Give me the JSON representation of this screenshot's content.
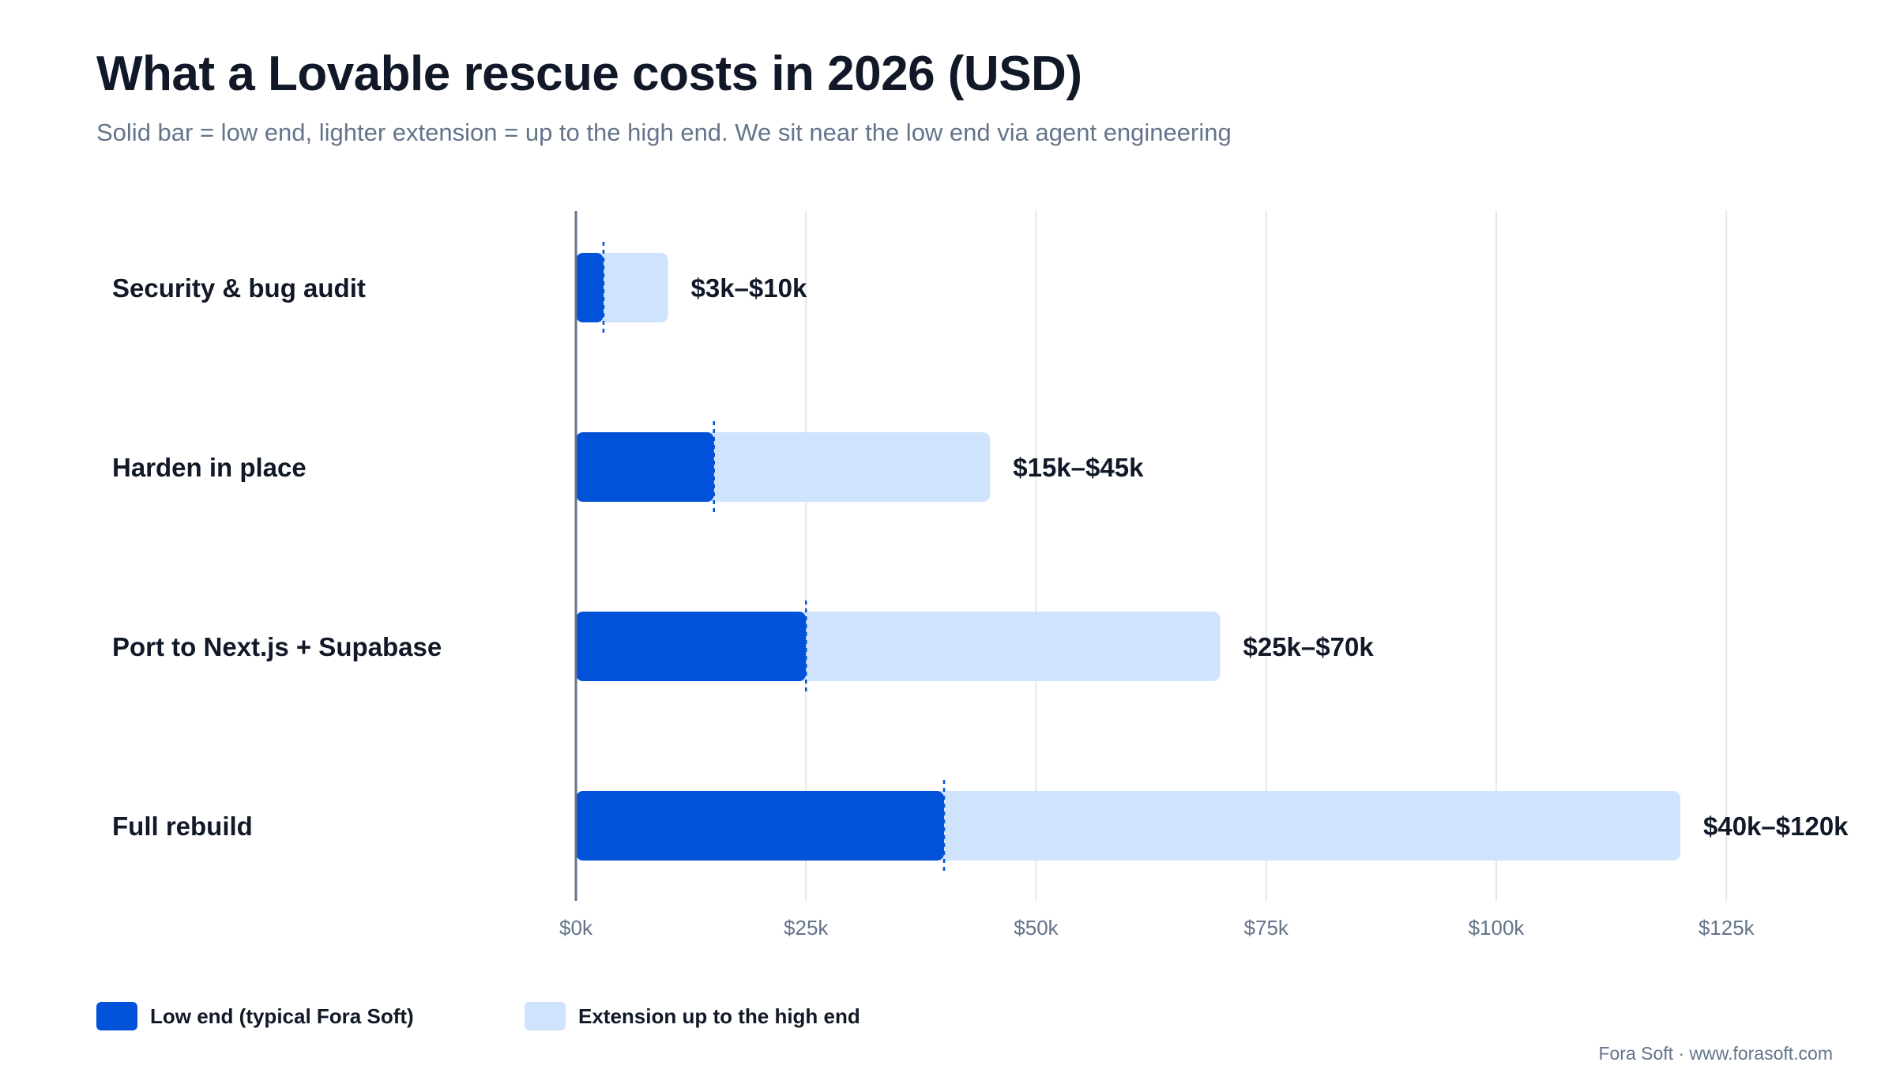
{
  "title": "What a Lovable rescue costs in 2026 (USD)",
  "subtitle": "Solid bar = low end, lighter extension = up to the high end. We sit near the low end via agent engineering",
  "footer": "Fora Soft · www.forasoft.com",
  "legend": {
    "low_label": "Low end (typical Fora Soft)",
    "high_label": "Extension up to the high end"
  },
  "colors": {
    "low": "#0252d9",
    "high": "#cfe3fc",
    "marker": "#0252d9",
    "grid": "#e2e8f0",
    "axis": "#64748b"
  },
  "chart_data": {
    "type": "bar",
    "orientation": "horizontal",
    "stacked_range": true,
    "categories": [
      "Security & bug audit",
      "Harden in place",
      "Port to Next.js + Supabase",
      "Full rebuild"
    ],
    "series": [
      {
        "name": "Low end (typical Fora Soft)",
        "values": [
          3,
          15,
          25,
          40
        ]
      },
      {
        "name": "Extension up to the high end",
        "values": [
          10,
          45,
          70,
          120
        ]
      }
    ],
    "low": [
      3,
      15,
      25,
      40
    ],
    "high": [
      10,
      45,
      70,
      120
    ],
    "value_unit": "thousand USD",
    "data_labels": [
      "$3k–$10k",
      "$15k–$45k",
      "$25k–$70k",
      "$40k–$120k"
    ],
    "xlim": [
      0,
      125
    ],
    "xticks": [
      0,
      25,
      50,
      75,
      100,
      125
    ],
    "xtick_labels": [
      "$0k",
      "$25k",
      "$50k",
      "$75k",
      "$100k",
      "$125k"
    ],
    "grid": true,
    "legend_position": "bottom-left"
  }
}
